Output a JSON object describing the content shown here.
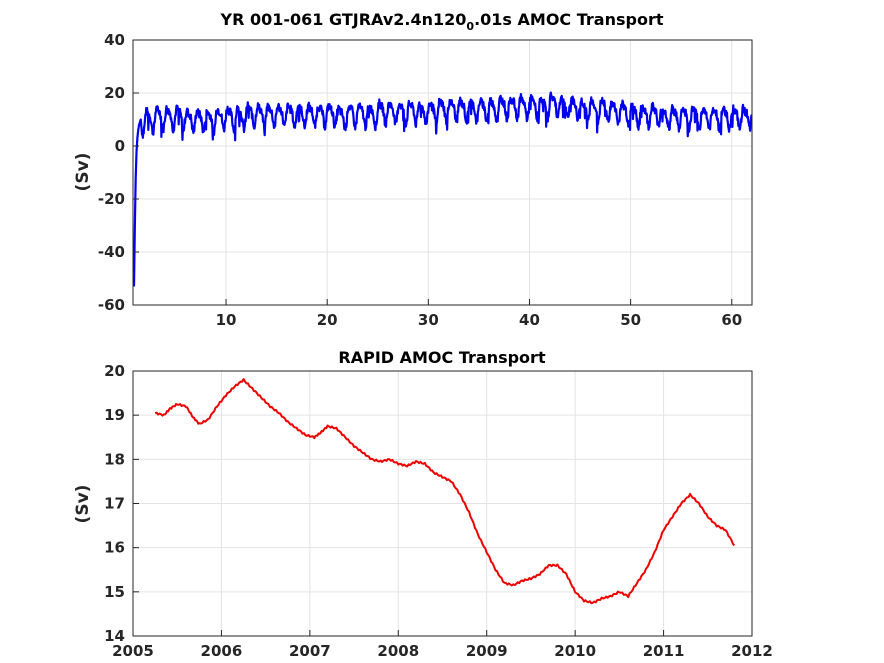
{
  "chart_data": [
    {
      "type": "line",
      "title": "YR 001-061 GTJRAv2.4n120",
      "title_sub": "0",
      "title_tail": ".01s AMOC Transport",
      "xlabel": "",
      "ylabel": "(Sv)",
      "xlim": [
        0.8,
        62
      ],
      "ylim": [
        -60,
        40
      ],
      "xticks": [
        10,
        20,
        30,
        40,
        50,
        60
      ],
      "yticks": [
        -60,
        -40,
        -20,
        0,
        20,
        40
      ],
      "color": "#0000ee",
      "grid": true,
      "series": [
        {
          "description_values": "monthly model AMOC transport; seasonal cycle of ~5 Sv amplitude around yearly means",
          "start_x": 0.9,
          "start_values": [
            -53,
            -30,
            -12,
            -2,
            3,
            6,
            8,
            9,
            10
          ],
          "yearly_means": [
            9,
            10,
            11,
            11,
            11,
            10,
            10,
            10,
            11,
            11,
            11,
            12,
            12,
            12,
            12,
            12,
            12,
            12,
            12,
            12,
            11,
            12,
            12,
            12,
            13,
            13,
            13,
            13,
            13,
            13,
            14,
            14,
            14,
            14,
            14,
            14,
            15,
            15,
            15,
            15,
            15,
            16,
            15,
            15,
            14,
            14,
            14,
            13,
            13,
            12,
            12,
            12,
            11,
            11,
            11,
            11,
            11,
            11,
            11,
            11,
            11,
            10
          ],
          "seasonal_amplitude": 3.5
        }
      ]
    },
    {
      "type": "line",
      "title": "RAPID AMOC Transport",
      "xlabel": "",
      "ylabel": "(Sv)",
      "xlim": [
        2005,
        2012
      ],
      "ylim": [
        14,
        20
      ],
      "xticks": [
        2005,
        2006,
        2007,
        2008,
        2009,
        2010,
        2011,
        2012
      ],
      "yticks": [
        14,
        15,
        16,
        17,
        18,
        19,
        20
      ],
      "color": "#ee0000",
      "grid": true,
      "series": [
        {
          "x": [
            2005.25,
            2005.35,
            2005.42,
            2005.5,
            2005.6,
            2005.68,
            2005.75,
            2005.85,
            2005.95,
            2006.05,
            2006.15,
            2006.25,
            2006.35,
            2006.45,
            2006.55,
            2006.65,
            2006.75,
            2006.85,
            2006.95,
            2007.05,
            2007.12,
            2007.2,
            2007.3,
            2007.4,
            2007.5,
            2007.6,
            2007.7,
            2007.8,
            2007.9,
            2008.0,
            2008.1,
            2008.2,
            2008.3,
            2008.4,
            2008.5,
            2008.6,
            2008.7,
            2008.8,
            2008.9,
            2009.0,
            2009.1,
            2009.2,
            2009.3,
            2009.4,
            2009.5,
            2009.6,
            2009.7,
            2009.8,
            2009.9,
            2010.0,
            2010.1,
            2010.2,
            2010.3,
            2010.4,
            2010.5,
            2010.6,
            2010.7,
            2010.8,
            2010.9,
            2011.0,
            2011.1,
            2011.2,
            2011.3,
            2011.4,
            2011.5,
            2011.6,
            2011.7,
            2011.8
          ],
          "values": [
            19.05,
            19.0,
            19.15,
            19.25,
            19.2,
            18.95,
            18.8,
            18.9,
            19.2,
            19.45,
            19.65,
            19.8,
            19.6,
            19.4,
            19.2,
            19.05,
            18.85,
            18.7,
            18.55,
            18.5,
            18.6,
            18.75,
            18.7,
            18.5,
            18.3,
            18.15,
            18.0,
            17.95,
            18.0,
            17.9,
            17.85,
            17.95,
            17.9,
            17.7,
            17.6,
            17.5,
            17.2,
            16.8,
            16.3,
            15.9,
            15.5,
            15.2,
            15.15,
            15.25,
            15.3,
            15.4,
            15.6,
            15.6,
            15.4,
            15.0,
            14.8,
            14.75,
            14.85,
            14.9,
            15.0,
            14.9,
            15.2,
            15.5,
            15.9,
            16.4,
            16.7,
            17.0,
            17.2,
            17.0,
            16.7,
            16.5,
            16.4,
            16.05
          ]
        }
      ]
    }
  ]
}
